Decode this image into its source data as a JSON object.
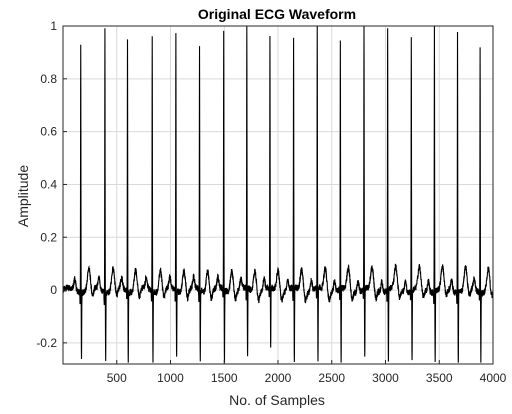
{
  "chart_data": {
    "type": "line",
    "title": "Original ECG Waveform",
    "xlabel": "No. of Samples",
    "ylabel": "Amplitude",
    "xlim": [
      0,
      4000
    ],
    "ylim": [
      -0.28,
      1.0
    ],
    "xticks": [
      500,
      1000,
      1500,
      2000,
      2500,
      3000,
      3500,
      4000
    ],
    "yticks": [
      -0.2,
      0,
      0.2,
      0.4,
      0.6,
      0.8,
      1
    ],
    "xtick_labels": [
      "500",
      "1000",
      "1500",
      "2000",
      "2500",
      "3000",
      "3500",
      "4000"
    ],
    "ytick_labels": [
      "-0.2",
      "0",
      "0.2",
      "0.4",
      "0.6",
      "0.8",
      "1"
    ],
    "grid": true,
    "line_color": "#000000",
    "grid_color": "#d9d9d9",
    "beats": [
      {
        "x": 165,
        "peak": 0.94,
        "trough": -0.26
      },
      {
        "x": 390,
        "peak": 1.0,
        "trough": -0.26
      },
      {
        "x": 600,
        "peak": 0.95,
        "trough": -0.27
      },
      {
        "x": 830,
        "peak": 0.96,
        "trough": -0.27
      },
      {
        "x": 1050,
        "peak": 0.98,
        "trough": -0.26
      },
      {
        "x": 1270,
        "peak": 0.92,
        "trough": -0.27
      },
      {
        "x": 1495,
        "peak": 0.97,
        "trough": -0.27
      },
      {
        "x": 1710,
        "peak": 1.0,
        "trough": -0.26
      },
      {
        "x": 1925,
        "peak": 0.96,
        "trough": -0.23
      },
      {
        "x": 2145,
        "peak": 0.95,
        "trough": -0.28
      },
      {
        "x": 2365,
        "peak": 0.99,
        "trough": -0.27
      },
      {
        "x": 2580,
        "peak": 0.93,
        "trough": -0.28
      },
      {
        "x": 2800,
        "peak": 1.0,
        "trough": -0.26
      },
      {
        "x": 3020,
        "peak": 0.98,
        "trough": -0.27
      },
      {
        "x": 3240,
        "peak": 0.97,
        "trough": -0.26
      },
      {
        "x": 3455,
        "peak": 1.0,
        "trough": -0.26
      },
      {
        "x": 3670,
        "peak": 0.98,
        "trough": -0.27
      },
      {
        "x": 3880,
        "peak": 0.92,
        "trough": -0.26
      }
    ],
    "baseline": 0.0,
    "t_wave_amplitude": 0.08,
    "p_wave_amplitude": 0.04
  }
}
